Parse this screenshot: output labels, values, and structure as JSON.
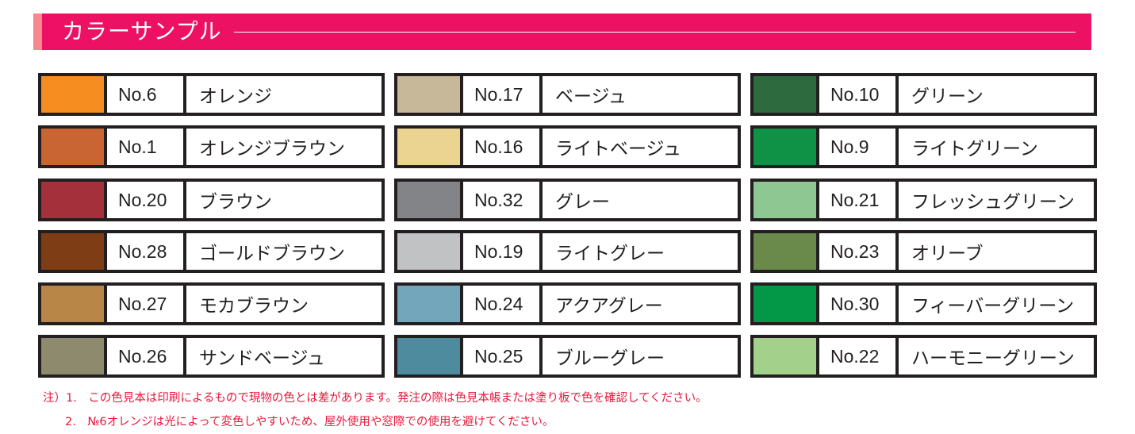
{
  "title": "カラーサンプル",
  "columns": [
    [
      {
        "no": "No.6",
        "name": "オレンジ",
        "color": "#f68d21"
      },
      {
        "no": "No.1",
        "name": "オレンジブラウン",
        "color": "#c96533"
      },
      {
        "no": "No.20",
        "name": "ブラウン",
        "color": "#a3303a"
      },
      {
        "no": "No.28",
        "name": "ゴールドブラウン",
        "color": "#7f3d16"
      },
      {
        "no": "No.27",
        "name": "モカブラウン",
        "color": "#b88647"
      },
      {
        "no": "No.26",
        "name": "サンドベージュ",
        "color": "#8e8a6e"
      }
    ],
    [
      {
        "no": "No.17",
        "name": "ベージュ",
        "color": "#c6b899"
      },
      {
        "no": "No.16",
        "name": "ライトベージュ",
        "color": "#ebd391"
      },
      {
        "no": "No.32",
        "name": "グレー",
        "color": "#838487"
      },
      {
        "no": "No.19",
        "name": "ライトグレー",
        "color": "#c1c2c4"
      },
      {
        "no": "No.24",
        "name": "アクアグレー",
        "color": "#74a6bb"
      },
      {
        "no": "No.25",
        "name": "ブルーグレー",
        "color": "#4e8b9f"
      }
    ],
    [
      {
        "no": "No.10",
        "name": "グリーン",
        "color": "#2d6b3f"
      },
      {
        "no": "No.9",
        "name": "ライトグリーン",
        "color": "#0f9245"
      },
      {
        "no": "No.21",
        "name": "フレッシュグリーン",
        "color": "#8ec791"
      },
      {
        "no": "No.23",
        "name": "オリーブ",
        "color": "#6a8a4c"
      },
      {
        "no": "No.30",
        "name": "フィーバーグリーン",
        "color": "#039847"
      },
      {
        "no": "No.22",
        "name": "ハーモニーグリーン",
        "color": "#a3d18b"
      }
    ]
  ],
  "notes": [
    "注）1.　この色見本は印刷によるもので現物の色とは差があります。発注の際は色見本帳または塗り板で色を確認してください。",
    "2.　№6オレンジは光によって変色しやすいため、屋外使用や窓際での使用を避けてください。"
  ]
}
